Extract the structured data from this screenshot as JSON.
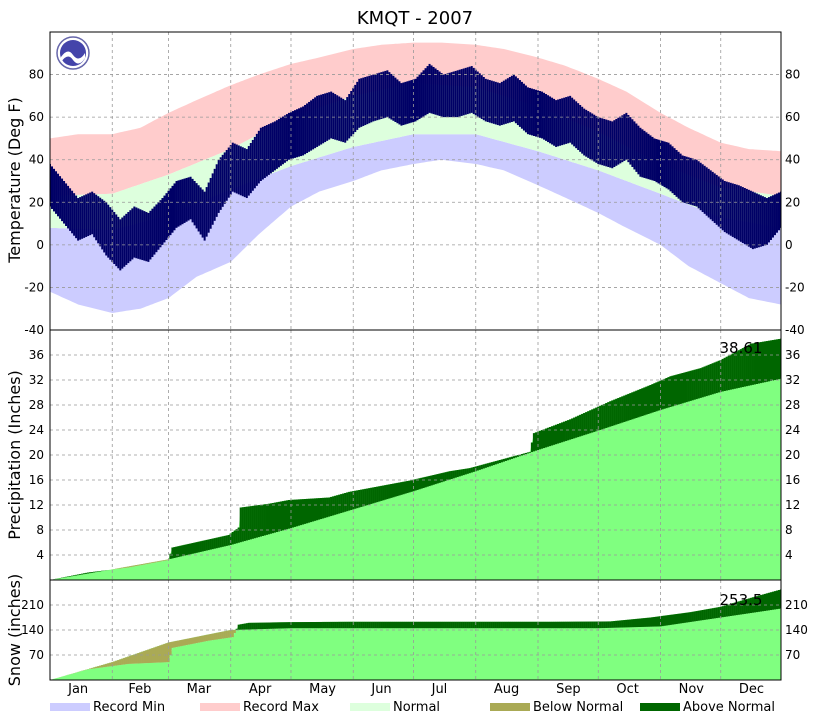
{
  "chart_data": {
    "type": "area",
    "title": "KMQT - 2007",
    "months": [
      "Jan",
      "Feb",
      "Mar",
      "Apr",
      "May",
      "Jun",
      "Jul",
      "Aug",
      "Sep",
      "Oct",
      "Nov",
      "Dec"
    ],
    "colors": {
      "record_min": "#ccccff",
      "record_max": "#ffcccc",
      "normal_band": "#ddffdd",
      "observed": "#000066",
      "normal_fill": "#80ff80",
      "below_normal": "#aaaa55",
      "above_normal": "#006600"
    },
    "legend": [
      {
        "label": "Record Min",
        "color": "#ccccff"
      },
      {
        "label": "Record Max",
        "color": "#ffcccc"
      },
      {
        "label": "Normal",
        "color": "#ddffdd"
      },
      {
        "label": "Below Normal",
        "color": "#aaaa55"
      },
      {
        "label": "Above Normal",
        "color": "#006600"
      }
    ],
    "panels": [
      {
        "id": "temperature",
        "ylabel": "Temperature (Deg F)",
        "ylim": [
          -40,
          100
        ],
        "yticks": [
          -40,
          -20,
          0,
          20,
          40,
          60,
          80
        ],
        "grid": true,
        "series": {
          "record_max": {
            "x": [
              1,
              15,
              32,
              46,
              60,
              74,
              91,
              105,
              121,
              135,
              152,
              166,
              182,
              196,
              213,
              227,
              244,
              258,
              274,
              288,
              305,
              319,
              335,
              349,
              365
            ],
            "y": [
              50,
              52,
              52,
              55,
              62,
              68,
              75,
              80,
              85,
              88,
              92,
              94,
              95,
              95,
              94,
              92,
              88,
              84,
              78,
              72,
              62,
              55,
              48,
              45,
              44
            ]
          },
          "normal_high": {
            "x": [
              1,
              32,
              60,
              91,
              121,
              152,
              182,
              213,
              244,
              274,
              305,
              335,
              365
            ],
            "y": [
              23,
              24,
              33,
              45,
              60,
              70,
              76,
              74,
              65,
              53,
              38,
              27,
              23
            ]
          },
          "normal_low": {
            "x": [
              1,
              32,
              60,
              91,
              121,
              152,
              182,
              213,
              244,
              274,
              305,
              335,
              365
            ],
            "y": [
              8,
              7,
              14,
              26,
              37,
              46,
              52,
              52,
              44,
              35,
              24,
              13,
              8
            ]
          },
          "record_min": {
            "x": [
              1,
              15,
              32,
              46,
              60,
              74,
              91,
              105,
              121,
              135,
              152,
              166,
              182,
              196,
              213,
              227,
              244,
              258,
              274,
              288,
              305,
              319,
              335,
              349,
              365
            ],
            "y": [
              -22,
              -28,
              -32,
              -30,
              -25,
              -15,
              -8,
              5,
              18,
              25,
              30,
              35,
              38,
              40,
              38,
              35,
              28,
              22,
              15,
              8,
              0,
              -10,
              -18,
              -25,
              -28
            ]
          },
          "observed_high": {
            "x": [
              1,
              8,
              15,
              22,
              29,
              36,
              43,
              50,
              57,
              64,
              71,
              78,
              85,
              92,
              99,
              106,
              113,
              120,
              127,
              134,
              141,
              148,
              155,
              162,
              169,
              176,
              183,
              190,
              197,
              204,
              211,
              218,
              225,
              232,
              239,
              246,
              253,
              260,
              267,
              274,
              281,
              288,
              295,
              302,
              309,
              316,
              323,
              330,
              337,
              344,
              351,
              358,
              365
            ],
            "y": [
              38,
              30,
              22,
              25,
              20,
              12,
              18,
              15,
              22,
              30,
              32,
              25,
              40,
              48,
              45,
              55,
              58,
              62,
              65,
              70,
              72,
              68,
              78,
              80,
              82,
              76,
              78,
              85,
              80,
              82,
              84,
              78,
              76,
              80,
              74,
              72,
              68,
              70,
              64,
              60,
              58,
              62,
              55,
              50,
              48,
              42,
              40,
              35,
              30,
              28,
              25,
              22,
              25
            ]
          },
          "observed_low": {
            "x": [
              1,
              8,
              15,
              22,
              29,
              36,
              43,
              50,
              57,
              64,
              71,
              78,
              85,
              92,
              99,
              106,
              113,
              120,
              127,
              134,
              141,
              148,
              155,
              162,
              169,
              176,
              183,
              190,
              197,
              204,
              211,
              218,
              225,
              232,
              239,
              246,
              253,
              260,
              267,
              274,
              281,
              288,
              295,
              302,
              309,
              316,
              323,
              330,
              337,
              344,
              351,
              358,
              365
            ],
            "y": [
              18,
              10,
              2,
              5,
              -5,
              -12,
              -6,
              -8,
              0,
              8,
              12,
              2,
              15,
              25,
              22,
              30,
              35,
              40,
              42,
              46,
              50,
              48,
              55,
              58,
              60,
              56,
              58,
              62,
              60,
              60,
              62,
              58,
              56,
              58,
              52,
              50,
              46,
              48,
              42,
              38,
              36,
              40,
              32,
              30,
              26,
              20,
              18,
              12,
              6,
              2,
              -2,
              0,
              8
            ]
          }
        }
      },
      {
        "id": "precipitation",
        "ylabel": "Precipitation (Inches)",
        "ylim": [
          0,
          40
        ],
        "yticks": [
          4,
          8,
          12,
          16,
          20,
          24,
          28,
          32,
          36
        ],
        "total_label": "38.61",
        "series": {
          "normal_cumulative": {
            "x": [
              1,
              32,
              60,
              91,
              121,
              152,
              182,
              213,
              244,
              274,
              305,
              335,
              365
            ],
            "y": [
              0,
              1.7,
              3.3,
              5.6,
              8.3,
              11.3,
              14.2,
              17.4,
              20.8,
              23.9,
              27.2,
              30.1,
              32.2
            ]
          },
          "observed_cumulative": {
            "x": [
              1,
              20,
              40,
              60,
              62,
              90,
              95,
              96,
              110,
              120,
              140,
              150,
              180,
              200,
              210,
              240,
              242,
              260,
              280,
              300,
              310,
              325,
              335,
              350,
              365
            ],
            "y": [
              0,
              1.2,
              2,
              3.2,
              5.2,
              7.2,
              8.4,
              11.6,
              12.2,
              12.8,
              13.2,
              14.1,
              15.9,
              17.4,
              17.9,
              20.5,
              23.5,
              25.7,
              28.6,
              31.2,
              32.6,
              33.9,
              35.2,
              37.8,
              38.61
            ]
          }
        }
      },
      {
        "id": "snow",
        "ylabel": "Snow (inches)",
        "ylim": [
          0,
          280
        ],
        "yticks": [
          70,
          140,
          210
        ],
        "total_label": "253.5",
        "series": {
          "normal_cumulative": {
            "x": [
              1,
              32,
              60,
              91,
              121,
              152,
              244,
              274,
              305,
              335,
              365
            ],
            "y": [
              0,
              50,
              105,
              140,
              145,
              145,
              145,
              145,
              150,
              175,
              200
            ]
          },
          "observed_cumulative": {
            "x": [
              1,
              20,
              40,
              60,
              62,
              80,
              92,
              95,
              100,
              120,
              150,
              200,
              250,
              280,
              300,
              320,
              335,
              350,
              365
            ],
            "y": [
              0,
              30,
              45,
              50,
              90,
              110,
              120,
              155,
              160,
              162,
              163,
              163,
              163,
              164,
              175,
              190,
              205,
              230,
              253.5
            ]
          }
        }
      }
    ]
  }
}
